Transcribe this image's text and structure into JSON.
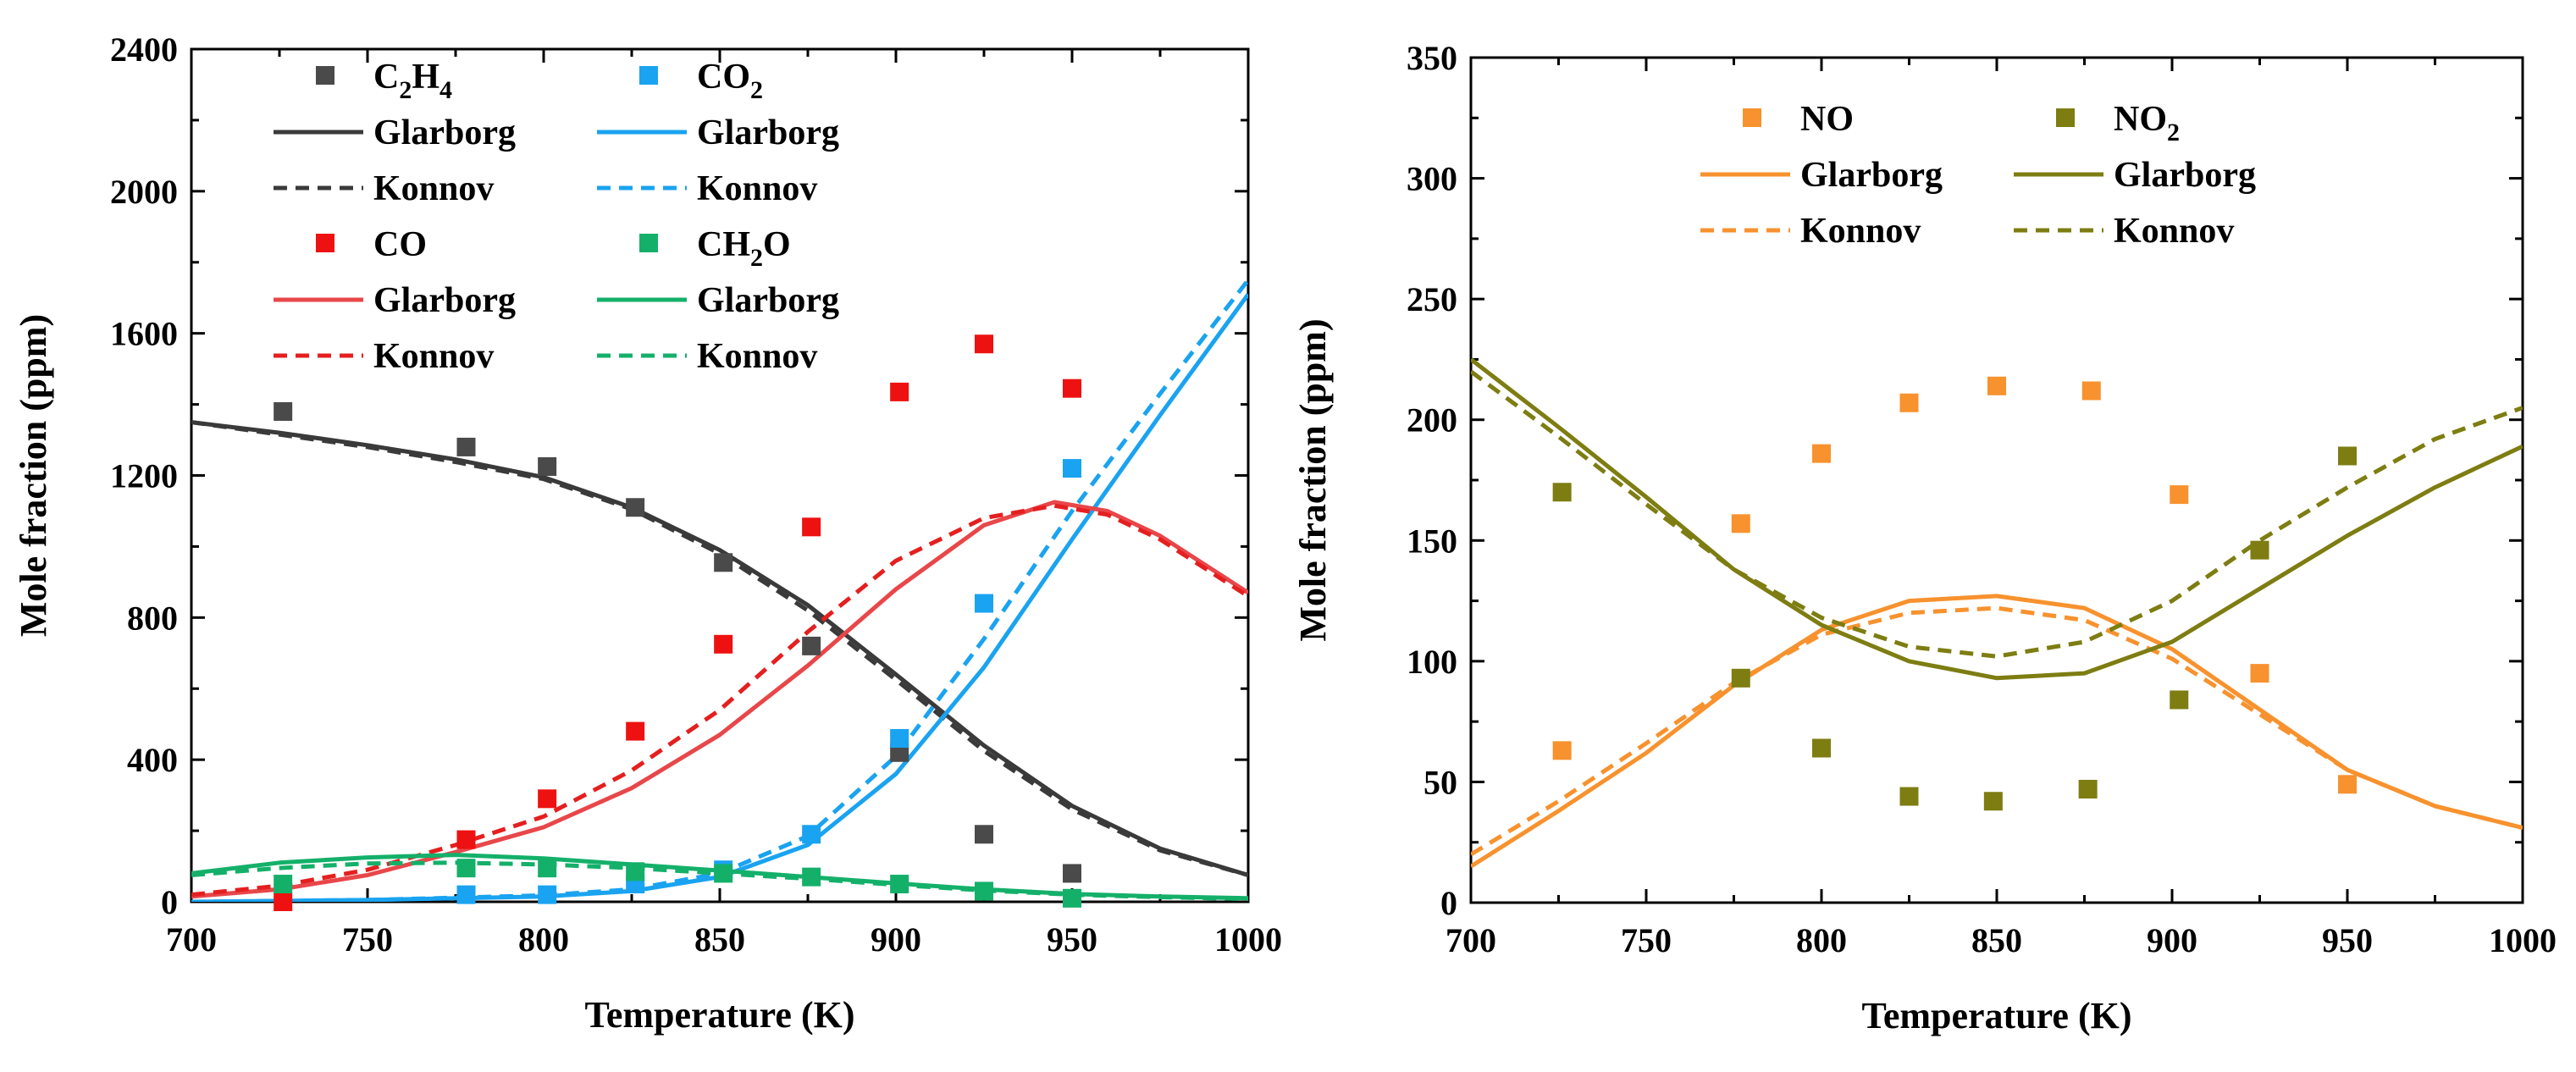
{
  "chart_data": [
    {
      "type": "line",
      "title": "",
      "xlabel": "Temperature (K)",
      "ylabel": "Mole fraction (ppm)",
      "xlim": [
        700,
        1000
      ],
      "ylim": [
        0,
        2400
      ],
      "xticks": [
        700,
        750,
        800,
        850,
        900,
        950,
        1000
      ],
      "yticks": [
        0,
        400,
        800,
        1200,
        1600,
        2000,
        2400
      ],
      "legend_location": "top-left",
      "legend": [
        {
          "label": "C2H4",
          "kind": "marker",
          "color": "#4a4a4a",
          "col": 0,
          "row": 0,
          "sub": "C|2|H|4"
        },
        {
          "label": "Glarborg",
          "kind": "solid",
          "color": "#3a3a3a",
          "col": 0,
          "row": 1
        },
        {
          "label": "Konnov",
          "kind": "dash",
          "color": "#3a3a3a",
          "col": 0,
          "row": 2
        },
        {
          "label": "CO",
          "kind": "marker",
          "color": "#ee1111",
          "col": 0,
          "row": 3
        },
        {
          "label": "Glarborg",
          "kind": "solid",
          "color": "#e8474a",
          "col": 0,
          "row": 4
        },
        {
          "label": "Konnov",
          "kind": "dash",
          "color": "#e51f1f",
          "col": 0,
          "row": 5
        },
        {
          "label": "CO2",
          "kind": "marker",
          "color": "#1aa3f0",
          "col": 1,
          "row": 0,
          "sub": "CO|2"
        },
        {
          "label": "Glarborg",
          "kind": "solid",
          "color": "#1aa3f0",
          "col": 1,
          "row": 1
        },
        {
          "label": "Konnov",
          "kind": "dash",
          "color": "#1aa3f0",
          "col": 1,
          "row": 2
        },
        {
          "label": "CH2O",
          "kind": "marker",
          "color": "#14b06a",
          "col": 1,
          "row": 3,
          "sub": "CH|2|O"
        },
        {
          "label": "Glarborg",
          "kind": "solid",
          "color": "#14b06a",
          "col": 1,
          "row": 4
        },
        {
          "label": "Konnov",
          "kind": "dash",
          "color": "#14b06a",
          "col": 1,
          "row": 5
        }
      ],
      "series": [
        {
          "name": "C2H4 (exp)",
          "kind": "marker",
          "color": "#4a4a4a",
          "x": [
            726,
            778,
            801,
            826,
            851,
            876,
            901,
            925,
            950
          ],
          "y": [
            1380,
            1280,
            1225,
            1110,
            955,
            720,
            420,
            190,
            80
          ]
        },
        {
          "name": "CO2 (exp)",
          "kind": "marker",
          "color": "#1aa3f0",
          "x": [
            778,
            801,
            826,
            851,
            876,
            901,
            925,
            950
          ],
          "y": [
            20,
            20,
            50,
            90,
            190,
            460,
            840,
            1220
          ]
        },
        {
          "name": "CO (exp)",
          "kind": "marker",
          "color": "#ee1111",
          "x": [
            726,
            778,
            801,
            826,
            851,
            876,
            901,
            925,
            950
          ],
          "y": [
            0,
            175,
            290,
            480,
            725,
            1055,
            1435,
            1570,
            1445
          ]
        },
        {
          "name": "CH2O (exp)",
          "kind": "marker",
          "color": "#14b06a",
          "x": [
            726,
            778,
            801,
            826,
            851,
            876,
            901,
            925,
            950
          ],
          "y": [
            50,
            95,
            95,
            85,
            80,
            70,
            50,
            30,
            10
          ]
        },
        {
          "name": "C2H4 Glarborg",
          "kind": "solid",
          "color": "#3a3a3a",
          "x": [
            700,
            725,
            750,
            775,
            800,
            825,
            850,
            875,
            900,
            925,
            950,
            975,
            1000
          ],
          "y": [
            1350,
            1320,
            1285,
            1245,
            1195,
            1110,
            990,
            835,
            640,
            440,
            270,
            150,
            75
          ]
        },
        {
          "name": "C2H4 Konnov",
          "kind": "dash",
          "color": "#3a3a3a",
          "x": [
            700,
            725,
            750,
            775,
            800,
            825,
            850,
            875,
            900,
            925,
            950,
            975,
            1000
          ],
          "y": [
            1350,
            1315,
            1280,
            1238,
            1190,
            1105,
            980,
            820,
            625,
            425,
            260,
            145,
            75
          ]
        },
        {
          "name": "CO2 Glarborg",
          "kind": "solid",
          "color": "#1aa3f0",
          "x": [
            700,
            750,
            800,
            825,
            850,
            875,
            900,
            925,
            950,
            975,
            1000
          ],
          "y": [
            0,
            5,
            15,
            30,
            70,
            160,
            360,
            660,
            1020,
            1370,
            1710
          ]
        },
        {
          "name": "CO2 Konnov",
          "kind": "dash",
          "color": "#1aa3f0",
          "x": [
            700,
            750,
            800,
            825,
            850,
            875,
            900,
            925,
            950,
            975,
            1000
          ],
          "y": [
            0,
            5,
            18,
            35,
            80,
            185,
            410,
            740,
            1100,
            1430,
            1750
          ]
        },
        {
          "name": "CO Glarborg",
          "kind": "solid",
          "color": "#e8474a",
          "x": [
            700,
            725,
            750,
            775,
            800,
            825,
            850,
            875,
            900,
            925,
            945,
            960,
            975,
            1000
          ],
          "y": [
            15,
            35,
            75,
            140,
            210,
            320,
            470,
            665,
            880,
            1060,
            1125,
            1100,
            1030,
            870
          ]
        },
        {
          "name": "CO Konnov",
          "kind": "dash",
          "color": "#e51f1f",
          "x": [
            700,
            725,
            750,
            775,
            800,
            825,
            850,
            875,
            900,
            925,
            945,
            960,
            975,
            1000
          ],
          "y": [
            20,
            45,
            90,
            160,
            240,
            370,
            540,
            760,
            960,
            1080,
            1115,
            1090,
            1020,
            860
          ]
        },
        {
          "name": "CH2O Glarborg",
          "kind": "solid",
          "color": "#14b06a",
          "x": [
            700,
            725,
            750,
            775,
            800,
            825,
            850,
            875,
            900,
            925,
            950,
            975,
            1000
          ],
          "y": [
            80,
            110,
            125,
            132,
            122,
            105,
            88,
            70,
            52,
            35,
            22,
            15,
            10
          ]
        },
        {
          "name": "CH2O Konnov",
          "kind": "dash",
          "color": "#14b06a",
          "x": [
            700,
            725,
            750,
            775,
            800,
            825,
            850,
            875,
            900,
            925,
            950,
            975,
            1000
          ],
          "y": [
            75,
            95,
            108,
            110,
            105,
            95,
            80,
            65,
            48,
            32,
            20,
            13,
            8
          ]
        }
      ]
    },
    {
      "type": "line",
      "title": "",
      "xlabel": "Temperature (K)",
      "ylabel": "Mole fraction (ppm)",
      "xlim": [
        700,
        1000
      ],
      "ylim": [
        0,
        350
      ],
      "xticks": [
        700,
        750,
        800,
        850,
        900,
        950,
        1000
      ],
      "yticks": [
        0,
        50,
        100,
        150,
        200,
        250,
        300,
        350
      ],
      "legend_location": "top-center",
      "legend": [
        {
          "label": "NO",
          "kind": "marker",
          "color": "#f7922e",
          "col": 0,
          "row": 0
        },
        {
          "label": "Glarborg",
          "kind": "solid",
          "color": "#f7922e",
          "col": 0,
          "row": 1
        },
        {
          "label": "Konnov",
          "kind": "dash",
          "color": "#f7922e",
          "col": 0,
          "row": 2
        },
        {
          "label": "NO2",
          "kind": "marker",
          "color": "#7d7d12",
          "col": 1,
          "row": 0,
          "sub": "NO|2"
        },
        {
          "label": "Glarborg",
          "kind": "solid",
          "color": "#7d7d12",
          "col": 1,
          "row": 1
        },
        {
          "label": "Konnov",
          "kind": "dash",
          "color": "#7d7d12",
          "col": 1,
          "row": 2
        }
      ],
      "series": [
        {
          "name": "NO (exp)",
          "kind": "marker",
          "color": "#f7922e",
          "x": [
            726,
            777,
            800,
            825,
            850,
            877,
            902,
            925,
            950
          ],
          "y": [
            63,
            157,
            186,
            207,
            214,
            212,
            169,
            95,
            49
          ]
        },
        {
          "name": "NO2 (exp)",
          "kind": "marker",
          "color": "#7d7d12",
          "x": [
            726,
            777,
            800,
            825,
            849,
            876,
            902,
            925,
            950
          ],
          "y": [
            170,
            93,
            64,
            44,
            42,
            47,
            84,
            146,
            185
          ]
        },
        {
          "name": "NO Glarborg",
          "kind": "solid",
          "color": "#f7922e",
          "x": [
            700,
            725,
            750,
            775,
            800,
            825,
            850,
            875,
            900,
            925,
            950,
            975,
            1000
          ],
          "y": [
            15,
            38,
            62,
            90,
            113,
            125,
            127,
            122,
            105,
            80,
            55,
            40,
            31
          ]
        },
        {
          "name": "NO Konnov",
          "kind": "dash",
          "color": "#f7922e",
          "x": [
            700,
            725,
            750,
            775,
            800,
            825,
            850,
            875,
            900,
            925,
            950,
            975,
            1000
          ],
          "y": [
            20,
            42,
            66,
            91,
            111,
            120,
            122,
            117,
            101,
            78,
            55,
            40,
            31
          ]
        },
        {
          "name": "NO2 Glarborg",
          "kind": "solid",
          "color": "#7d7d12",
          "x": [
            700,
            725,
            750,
            775,
            800,
            825,
            850,
            875,
            900,
            925,
            950,
            975,
            1000
          ],
          "y": [
            225,
            197,
            168,
            138,
            115,
            100,
            93,
            95,
            108,
            130,
            152,
            172,
            189
          ]
        },
        {
          "name": "NO2 Konnov",
          "kind": "dash",
          "color": "#7d7d12",
          "x": [
            700,
            725,
            750,
            775,
            800,
            825,
            850,
            875,
            900,
            925,
            950,
            975,
            1000
          ],
          "y": [
            220,
            193,
            165,
            138,
            118,
            106,
            102,
            108,
            125,
            150,
            172,
            192,
            205
          ]
        }
      ]
    }
  ]
}
